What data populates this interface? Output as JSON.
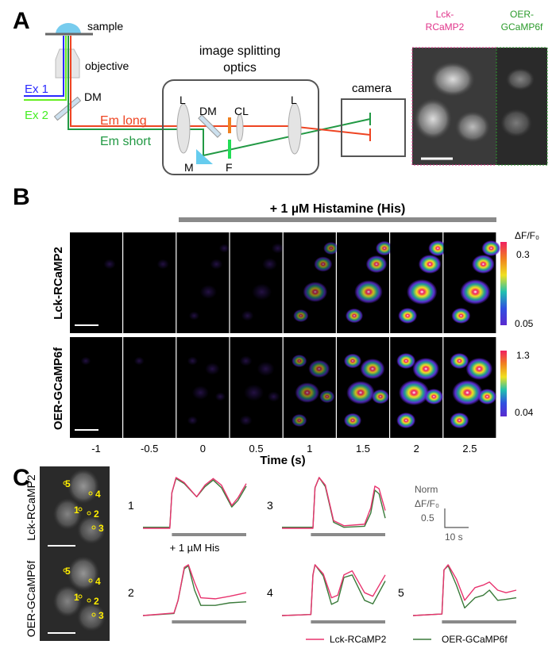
{
  "panelA": {
    "label": "A",
    "sample": "sample",
    "objective": "objective",
    "ex1": "Ex 1",
    "ex2": "Ex 2",
    "dm": "DM",
    "optics_title_1": "image splitting",
    "optics_title_2": "optics",
    "lens_left": "L",
    "dm_inner": "DM",
    "cl": "CL",
    "lens_right": "L",
    "mirror": "M",
    "filter": "F",
    "em_long": "Em long",
    "em_short": "Em short",
    "camera": "camera",
    "img_left_1": "Lck-",
    "img_left_2": "RCaMP2",
    "img_right_1": "OER-",
    "img_right_2": "GCaMP6f",
    "colors": {
      "ex1": "#2a2aff",
      "ex2": "#66ee22",
      "em_long": "#ee4422",
      "em_short": "#229944",
      "sample": "#77ccee",
      "lck": "#e0338a",
      "oer": "#2a9a2a"
    }
  },
  "panelB": {
    "label": "B",
    "stimulus": "+ 1 µM Histamine (His)",
    "row1": "Lck-RCaMP2",
    "row2": "OER-GCaMP6f",
    "time_ticks": [
      "-1",
      "-0.5",
      "0",
      "0.5",
      "1",
      "1.5",
      "2",
      "2.5"
    ],
    "xlabel": "Time (s)",
    "cbar_title": "ΔF/F₀",
    "cbar1_max": "0.3",
    "cbar1_min": "0.05",
    "cbar2_max": "1.3",
    "cbar2_min": "0.04"
  },
  "panelC": {
    "label": "C",
    "row1": "Lck-RCaMP2",
    "row2": "OER-GCaMP6f",
    "roi_labels": [
      "1",
      "2",
      "3",
      "4",
      "5"
    ],
    "stimulus": "+ 1 µM His",
    "scale_y_1": "Norm",
    "scale_y_2": "ΔF/F₀",
    "scale_y_val": "0.5",
    "scale_x": "10 s",
    "legend": [
      {
        "name": "Lck-RCaMP2",
        "color": "#e8336e"
      },
      {
        "name": "OER-GCaMP6f",
        "color": "#3a7a3a"
      }
    ]
  },
  "chart_data": {
    "type": "line",
    "xlabel": "",
    "ylabel": "Norm ΔF/F₀",
    "stimulus_start_s": 14,
    "panels": [
      {
        "roi": "1",
        "lck": [
          [
            0,
            0
          ],
          [
            13,
            0
          ],
          [
            14,
            0.7
          ],
          [
            16,
            1
          ],
          [
            20,
            0.9
          ],
          [
            26,
            0.62
          ],
          [
            30,
            0.85
          ],
          [
            34,
            0.98
          ],
          [
            38,
            0.85
          ],
          [
            43,
            0.45
          ],
          [
            46,
            0.6
          ],
          [
            50,
            0.88
          ]
        ],
        "oer": [
          [
            0,
            0.02
          ],
          [
            13,
            0.02
          ],
          [
            14,
            0.7
          ],
          [
            16,
            0.98
          ],
          [
            20,
            0.88
          ],
          [
            26,
            0.62
          ],
          [
            30,
            0.82
          ],
          [
            34,
            0.95
          ],
          [
            38,
            0.8
          ],
          [
            43,
            0.42
          ],
          [
            46,
            0.55
          ],
          [
            50,
            0.83
          ]
        ]
      },
      {
        "roi": "3",
        "lck": [
          [
            0,
            0
          ],
          [
            15,
            0
          ],
          [
            16,
            0.8
          ],
          [
            18,
            1
          ],
          [
            21,
            0.85
          ],
          [
            25,
            0.15
          ],
          [
            30,
            0.05
          ],
          [
            40,
            0.08
          ],
          [
            43,
            0.4
          ],
          [
            45,
            0.83
          ],
          [
            47,
            0.78
          ],
          [
            50,
            0.35
          ]
        ],
        "oer": [
          [
            0,
            0.02
          ],
          [
            15,
            0.02
          ],
          [
            16,
            0.8
          ],
          [
            18,
            1
          ],
          [
            21,
            0.82
          ],
          [
            25,
            0.12
          ],
          [
            30,
            0.02
          ],
          [
            40,
            0.04
          ],
          [
            43,
            0.3
          ],
          [
            45,
            0.75
          ],
          [
            47,
            0.68
          ],
          [
            50,
            0.2
          ]
        ]
      },
      {
        "roi": "2",
        "lck": [
          [
            0,
            0
          ],
          [
            15,
            0.05
          ],
          [
            17,
            0.3
          ],
          [
            20,
            0.95
          ],
          [
            22,
            1
          ],
          [
            25,
            0.65
          ],
          [
            28,
            0.35
          ],
          [
            35,
            0.33
          ],
          [
            42,
            0.38
          ],
          [
            50,
            0.45
          ]
        ],
        "oer": [
          [
            0,
            0
          ],
          [
            15,
            0.04
          ],
          [
            17,
            0.3
          ],
          [
            20,
            0.92
          ],
          [
            22,
            0.98
          ],
          [
            25,
            0.5
          ],
          [
            28,
            0.2
          ],
          [
            35,
            0.2
          ],
          [
            42,
            0.25
          ],
          [
            50,
            0.27
          ]
        ]
      },
      {
        "roi": "4",
        "lck": [
          [
            0,
            0
          ],
          [
            14,
            0.02
          ],
          [
            15,
            0.8
          ],
          [
            16,
            1
          ],
          [
            20,
            0.82
          ],
          [
            24,
            0.35
          ],
          [
            27,
            0.4
          ],
          [
            30,
            0.8
          ],
          [
            34,
            0.88
          ],
          [
            40,
            0.45
          ],
          [
            44,
            0.38
          ],
          [
            50,
            0.8
          ]
        ],
        "oer": [
          [
            0,
            0
          ],
          [
            14,
            0.02
          ],
          [
            15,
            0.8
          ],
          [
            16,
            1
          ],
          [
            20,
            0.78
          ],
          [
            24,
            0.22
          ],
          [
            27,
            0.28
          ],
          [
            30,
            0.75
          ],
          [
            34,
            0.8
          ],
          [
            40,
            0.3
          ],
          [
            44,
            0.23
          ],
          [
            50,
            0.68
          ]
        ]
      },
      {
        "roi": "5",
        "lck": [
          [
            0,
            0
          ],
          [
            14,
            0.03
          ],
          [
            15,
            0.9
          ],
          [
            17,
            1
          ],
          [
            21,
            0.72
          ],
          [
            25,
            0.3
          ],
          [
            30,
            0.55
          ],
          [
            34,
            0.6
          ],
          [
            37,
            0.66
          ],
          [
            41,
            0.5
          ],
          [
            45,
            0.45
          ],
          [
            50,
            0.5
          ]
        ],
        "oer": [
          [
            0,
            0
          ],
          [
            14,
            0.03
          ],
          [
            15,
            0.9
          ],
          [
            17,
            0.98
          ],
          [
            21,
            0.6
          ],
          [
            25,
            0.15
          ],
          [
            30,
            0.35
          ],
          [
            34,
            0.4
          ],
          [
            37,
            0.5
          ],
          [
            41,
            0.3
          ],
          [
            45,
            0.32
          ],
          [
            50,
            0.35
          ]
        ]
      }
    ],
    "xlim": [
      0,
      50
    ],
    "ylim": [
      0,
      1
    ]
  }
}
